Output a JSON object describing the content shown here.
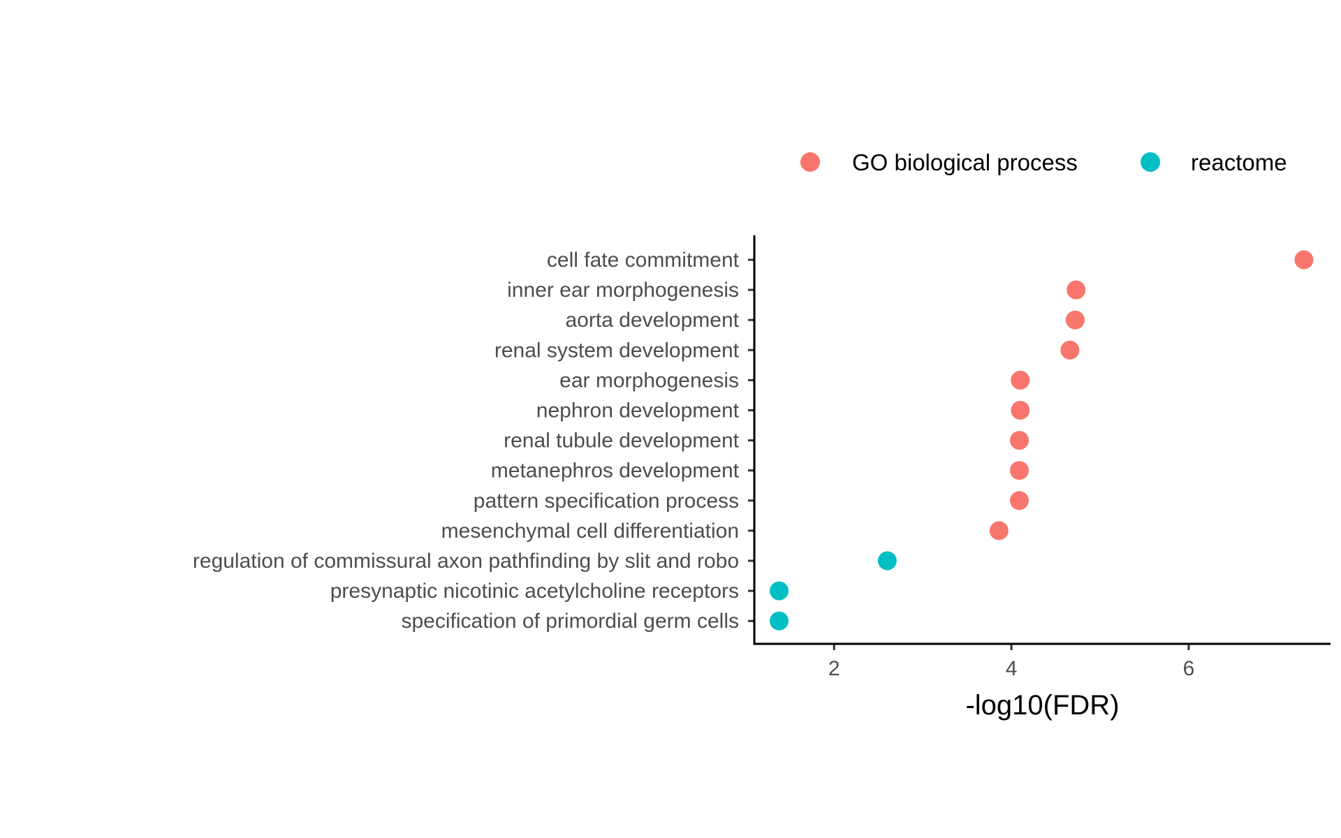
{
  "chart_data": {
    "type": "scatter",
    "xlabel": "-log10(FDR)",
    "ylabel": "",
    "title": "",
    "xlim": [
      1.1,
      7.6
    ],
    "xticks": [
      2,
      4,
      6
    ],
    "grid": false,
    "legend_position": "top-right",
    "groups": [
      {
        "name": "GO biological process",
        "color": "#F8766D"
      },
      {
        "name": "reactome",
        "color": "#00BFC4"
      }
    ],
    "points": [
      {
        "term": "cell fate commitment",
        "value": 7.3,
        "group": "GO biological process"
      },
      {
        "term": "inner ear morphogenesis",
        "value": 4.73,
        "group": "GO biological process"
      },
      {
        "term": "aorta development",
        "value": 4.72,
        "group": "GO biological process"
      },
      {
        "term": "renal system development",
        "value": 4.66,
        "group": "GO biological process"
      },
      {
        "term": "ear morphogenesis",
        "value": 4.1,
        "group": "GO biological process"
      },
      {
        "term": "nephron development",
        "value": 4.1,
        "group": "GO biological process"
      },
      {
        "term": "renal tubule development",
        "value": 4.09,
        "group": "GO biological process"
      },
      {
        "term": "metanephros development",
        "value": 4.09,
        "group": "GO biological process"
      },
      {
        "term": "pattern specification process",
        "value": 4.09,
        "group": "GO biological process"
      },
      {
        "term": "mesenchymal cell differentiation",
        "value": 3.86,
        "group": "GO biological process"
      },
      {
        "term": "regulation of commissural axon pathfinding by slit and robo",
        "value": 2.6,
        "group": "reactome"
      },
      {
        "term": "presynaptic nicotinic acetylcholine receptors",
        "value": 1.38,
        "group": "reactome"
      },
      {
        "term": "specification of primordial germ cells",
        "value": 1.38,
        "group": "reactome"
      }
    ]
  }
}
